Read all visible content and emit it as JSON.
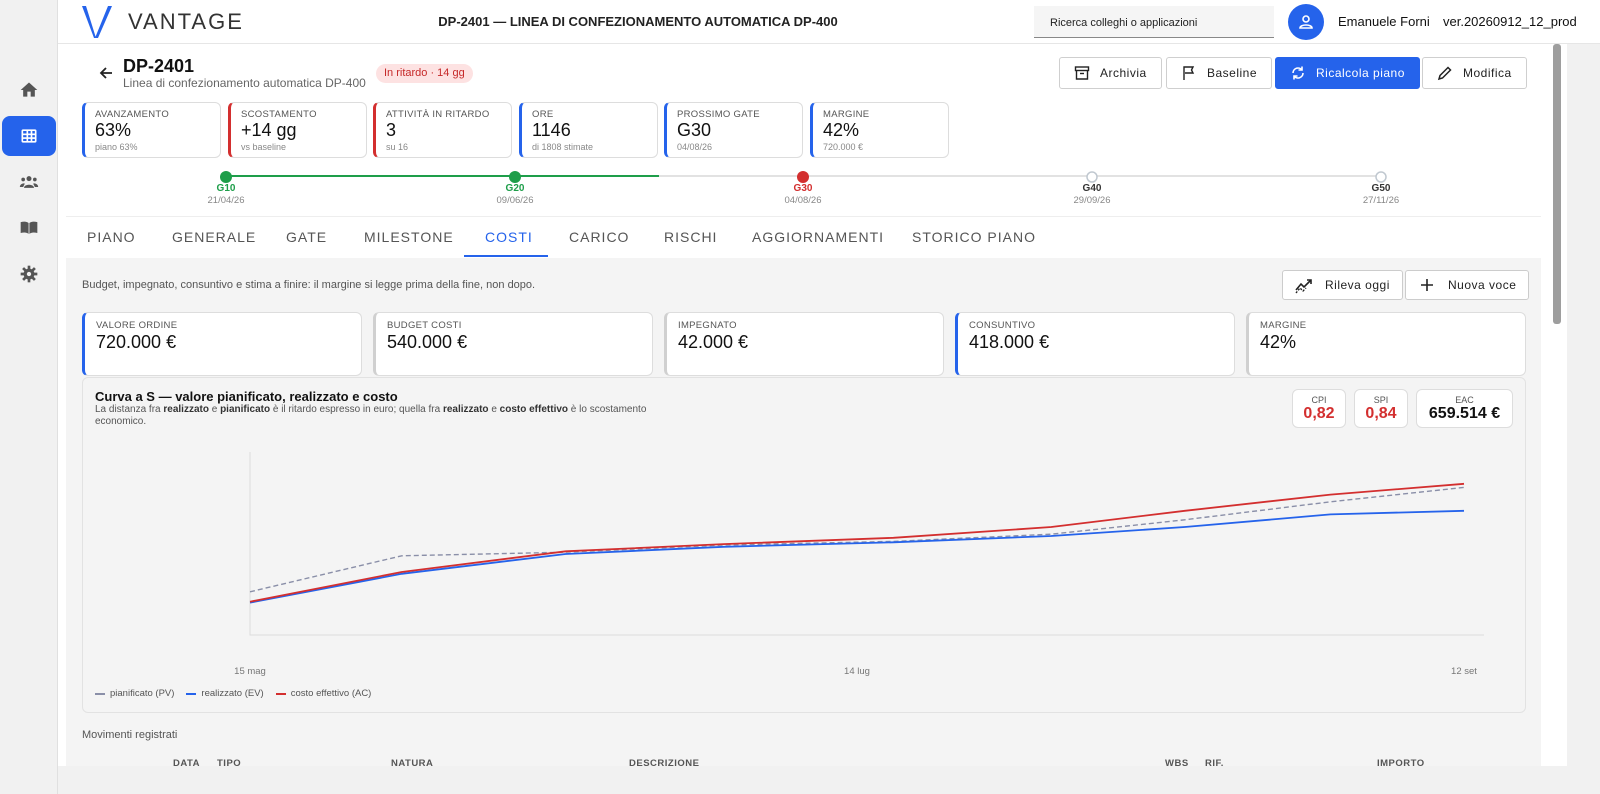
{
  "app": {
    "brand": "VANTAGE",
    "title": "DP-2401 — LINEA DI CONFEZIONAMENTO AUTOMATICA DP-400",
    "search_placeholder": "Ricerca colleghi o applicazioni",
    "user_name": "Emanuele Forni",
    "version": "ver.20260912_12_prod",
    "accent": "#2563eb"
  },
  "rail": {
    "items": [
      {
        "icon": "home-icon",
        "active": false
      },
      {
        "icon": "grid-icon",
        "active": true
      },
      {
        "icon": "people-icon",
        "active": false
      },
      {
        "icon": "book-icon",
        "active": false
      },
      {
        "icon": "gear-icon",
        "active": false
      }
    ]
  },
  "project": {
    "code": "DP-2401",
    "subtitle": "Linea di confezionamento automatica DP-400",
    "status_badge": "In ritardo · 14 gg"
  },
  "actions": {
    "archive": "Archivia",
    "baseline": "Baseline",
    "recalc": "Ricalcola piano",
    "edit": "Modifica"
  },
  "kpis": [
    {
      "label": "AVANZAMENTO",
      "value": "63%",
      "sub": "piano 63%",
      "tone": "blue"
    },
    {
      "label": "SCOSTAMENTO",
      "value": "+14 gg",
      "sub": "vs baseline",
      "tone": "red"
    },
    {
      "label": "ATTIVITÀ IN RITARDO",
      "value": "3",
      "sub": "su 16",
      "tone": "red"
    },
    {
      "label": "ORE",
      "value": "1146",
      "sub": "di 1808 stimate",
      "tone": "blue"
    },
    {
      "label": "PROSSIMO GATE",
      "value": "G30",
      "sub": "04/08/26",
      "tone": "blue"
    },
    {
      "label": "MARGINE",
      "value": "42%",
      "sub": "720.000 €",
      "tone": "blue"
    }
  ],
  "gates": [
    {
      "name": "G10",
      "date": "21/04/26",
      "status": "done",
      "color": "#1e9e4a"
    },
    {
      "name": "G20",
      "date": "09/06/26",
      "status": "done",
      "color": "#1e9e4a"
    },
    {
      "name": "G30",
      "date": "04/08/26",
      "status": "late",
      "color": "#d32f2f"
    },
    {
      "name": "G40",
      "date": "29/09/26",
      "status": "future",
      "color": "#333333"
    },
    {
      "name": "G50",
      "date": "27/11/26",
      "status": "future",
      "color": "#333333"
    }
  ],
  "tabs": [
    "PIANO",
    "GENERALE",
    "GATE",
    "MILESTONE",
    "COSTI",
    "CARICO",
    "RISCHI",
    "AGGIORNAMENTI",
    "STORICO PIANO"
  ],
  "active_tab": "COSTI",
  "costs": {
    "description": "Budget, impegnato, consuntivo e stima a finire: il margine si legge prima della fine, non dopo.",
    "btn_record": "Rileva oggi",
    "btn_new": "Nuova voce",
    "cards": [
      {
        "label": "VALORE ORDINE",
        "value": "720.000 €"
      },
      {
        "label": "BUDGET COSTI",
        "value": "540.000 €"
      },
      {
        "label": "IMPEGNATO",
        "value": "42.000 €"
      },
      {
        "label": "CONSUNTIVO",
        "value": "418.000 €"
      },
      {
        "label": "MARGINE",
        "value": "42%"
      }
    ],
    "chart_title": "Curva a S — valore pianificato, realizzato e costo",
    "chart_desc_parts": [
      "La distanza fra ",
      "realizzato",
      " e ",
      "pianificato",
      " è il ritardo espresso in euro; quella fra ",
      "realizzato",
      " e ",
      "costo effettivo",
      " è lo scostamento economico."
    ],
    "metrics": [
      {
        "label": "CPI",
        "value": "0,82",
        "tone": "red"
      },
      {
        "label": "SPI",
        "value": "0,84",
        "tone": "red"
      },
      {
        "label": "EAC",
        "value": "659.514 €",
        "tone": "dark"
      }
    ],
    "movements_title": "Movimenti registrati",
    "table_headers": [
      "DATA",
      "TIPO",
      "NATURA",
      "DESCRIZIONE",
      "WBS",
      "RIF.",
      "IMPORTO"
    ]
  },
  "chart_data": {
    "type": "line",
    "title": "Curva a S — valore pianificato, realizzato e costo",
    "x_tick_labels": [
      "15 mag",
      "14 lug",
      "12 set"
    ],
    "x": [
      0,
      1,
      2,
      3,
      4,
      5,
      6,
      7,
      8
    ],
    "series": [
      {
        "name": "pianificato (PV)",
        "color": "#8a8fa8",
        "dash": true,
        "values": [
          48,
          88,
          92,
          100,
          104,
          112,
          128,
          148,
          164
        ]
      },
      {
        "name": "realizzato (EV)",
        "color": "#2563eb",
        "dash": false,
        "values": [
          36,
          68,
          90,
          98,
          103,
          110,
          120,
          134,
          138
        ]
      },
      {
        "name": "costo effettivo (AC)",
        "color": "#d32f2f",
        "dash": false,
        "values": [
          37,
          70,
          93,
          101,
          108,
          120,
          138,
          156,
          168
        ]
      }
    ],
    "grid": false
  }
}
